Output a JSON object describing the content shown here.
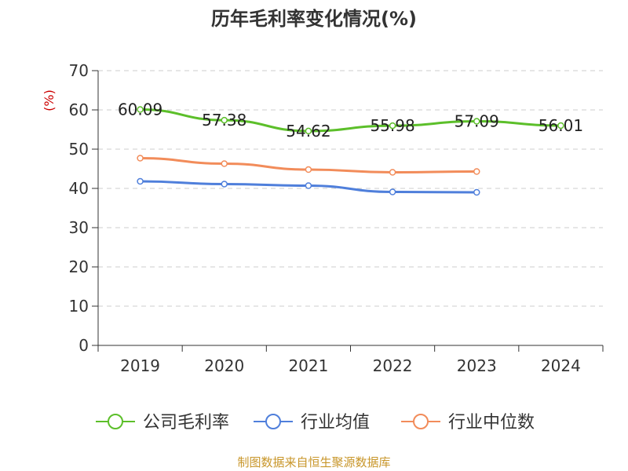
{
  "chart_data": {
    "type": "line",
    "title": "历年毛利率变化情况(%)",
    "ylabel": "(%)",
    "ylim": [
      0,
      70
    ],
    "yticks": [
      "0",
      "10",
      "20",
      "30",
      "40",
      "50",
      "60",
      "70"
    ],
    "categories": [
      "2019",
      "2020",
      "2021",
      "2022",
      "2023",
      "2024"
    ],
    "grid": true,
    "legend_position": "bottom",
    "series": [
      {
        "name": "公司毛利率",
        "color": "#5cbf2a",
        "values": [
          60.09,
          57.38,
          54.62,
          55.98,
          57.09,
          56.01
        ],
        "labels": [
          "60.09",
          "57.38",
          "54.62",
          "55.98",
          "57.09",
          "56.01"
        ]
      },
      {
        "name": "行业均值",
        "color": "#4f7fdb",
        "values": [
          41.8,
          41.1,
          40.7,
          39.1,
          39.0,
          null
        ]
      },
      {
        "name": "行业中位数",
        "color": "#f28c5a",
        "values": [
          47.7,
          46.3,
          44.8,
          44.1,
          44.3,
          null
        ]
      }
    ]
  },
  "source": "制图数据来自恒生聚源数据库",
  "colors": {
    "axis": "#333333",
    "grid": "#cccccc",
    "ylabel": "#cc0000",
    "source": "#c8962a"
  }
}
